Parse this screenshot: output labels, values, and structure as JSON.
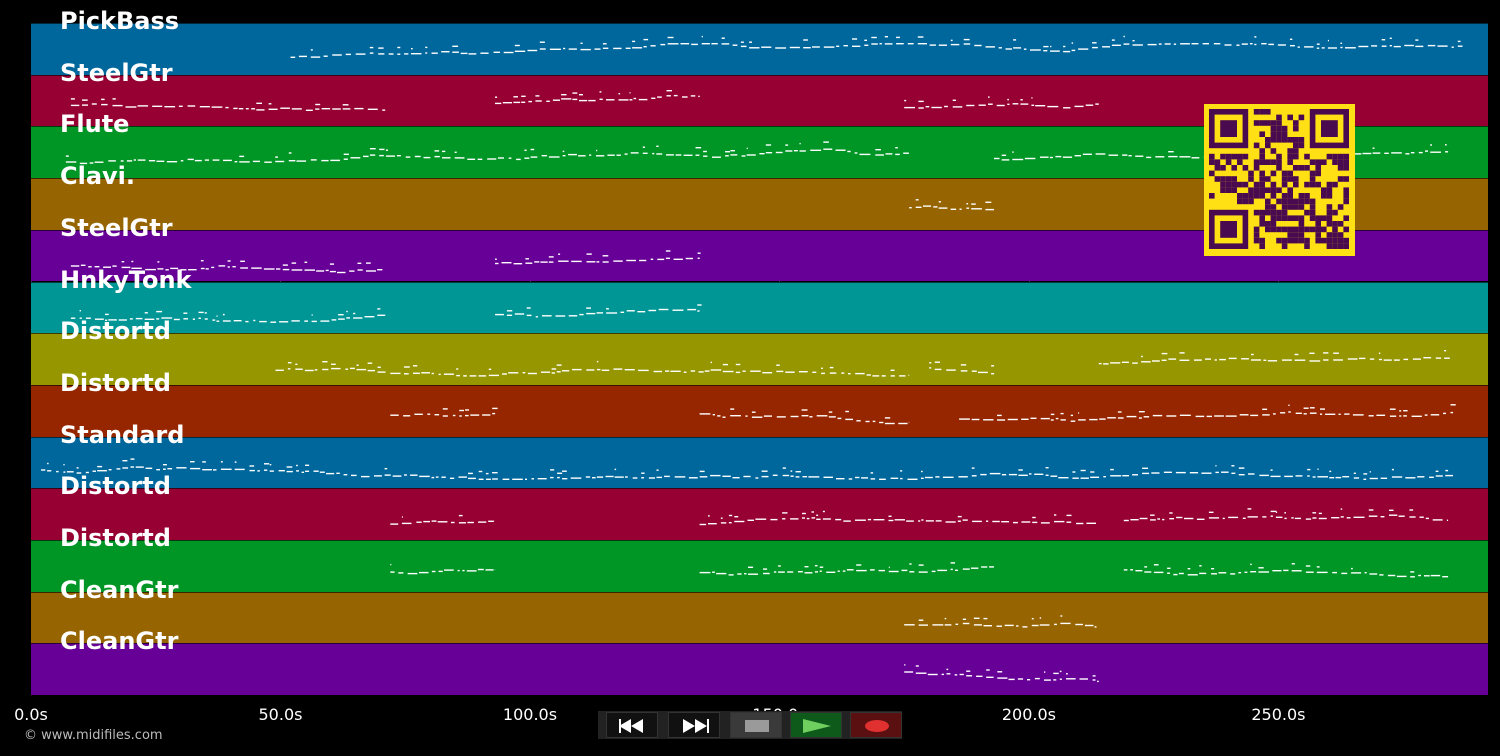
{
  "copyright": "© www.midifiles.com",
  "time_axis": {
    "min": 0,
    "max": 292,
    "ticks": [
      {
        "value": 0,
        "label": "0.0s"
      },
      {
        "value": 50,
        "label": "50.0s"
      },
      {
        "value": 100,
        "label": "100.0s"
      },
      {
        "value": 150,
        "label": "150.0s"
      },
      {
        "value": 200,
        "label": "200.0s"
      },
      {
        "value": 250,
        "label": "250.0s"
      }
    ]
  },
  "tracks": [
    {
      "name": "PickBass",
      "color": "#00679c",
      "segments": [
        [
          52,
          287
        ]
      ]
    },
    {
      "name": "SteelGtr",
      "color": "#960033",
      "segments": [
        [
          8,
          71
        ],
        [
          93,
          134
        ],
        [
          175,
          214
        ]
      ]
    },
    {
      "name": "Flute",
      "color": "#009626",
      "segments": [
        [
          7,
          176
        ],
        [
          193,
          284
        ]
      ]
    },
    {
      "name": "Clavi.",
      "color": "#966400",
      "segments": [
        [
          176,
          193
        ]
      ]
    },
    {
      "name": "SteelGtr",
      "color": "#670096",
      "segments": [
        [
          8,
          71
        ],
        [
          93,
          134
        ]
      ]
    },
    {
      "name": "HnkyTonk",
      "color": "#009696",
      "segments": [
        [
          8,
          71
        ],
        [
          93,
          134
        ]
      ]
    },
    {
      "name": "Distortd",
      "color": "#969600",
      "segments": [
        [
          49,
          176
        ],
        [
          180,
          193
        ],
        [
          214,
          285
        ]
      ]
    },
    {
      "name": "Distortd",
      "color": "#962600",
      "segments": [
        [
          72,
          93
        ],
        [
          134,
          176
        ],
        [
          186,
          285
        ]
      ]
    },
    {
      "name": "Standard",
      "color": "#00679c",
      "segments": [
        [
          2,
          285
        ]
      ]
    },
    {
      "name": "Distortd",
      "color": "#960033",
      "segments": [
        [
          72,
          93
        ],
        [
          134,
          214
        ],
        [
          219,
          284
        ]
      ]
    },
    {
      "name": "Distortd",
      "color": "#009626",
      "segments": [
        [
          72,
          93
        ],
        [
          134,
          193
        ],
        [
          219,
          284
        ]
      ]
    },
    {
      "name": "CleanGtr",
      "color": "#966400",
      "segments": [
        [
          175,
          214
        ]
      ]
    },
    {
      "name": "CleanGtr",
      "color": "#670096",
      "segments": [
        [
          175,
          214
        ]
      ]
    }
  ],
  "transport": {
    "buttons": [
      {
        "name": "rewind-button",
        "icon": "rewind-icon"
      },
      {
        "name": "fast-forward-button",
        "icon": "fast-forward-icon"
      },
      {
        "name": "stop-button",
        "icon": "stop-icon"
      },
      {
        "name": "play-button",
        "icon": "play-icon"
      },
      {
        "name": "record-button",
        "icon": "record-icon"
      }
    ]
  },
  "qr_code": {
    "icon": "qr-code-icon",
    "color": "#ffe014",
    "dark": "#4a0a4f"
  }
}
